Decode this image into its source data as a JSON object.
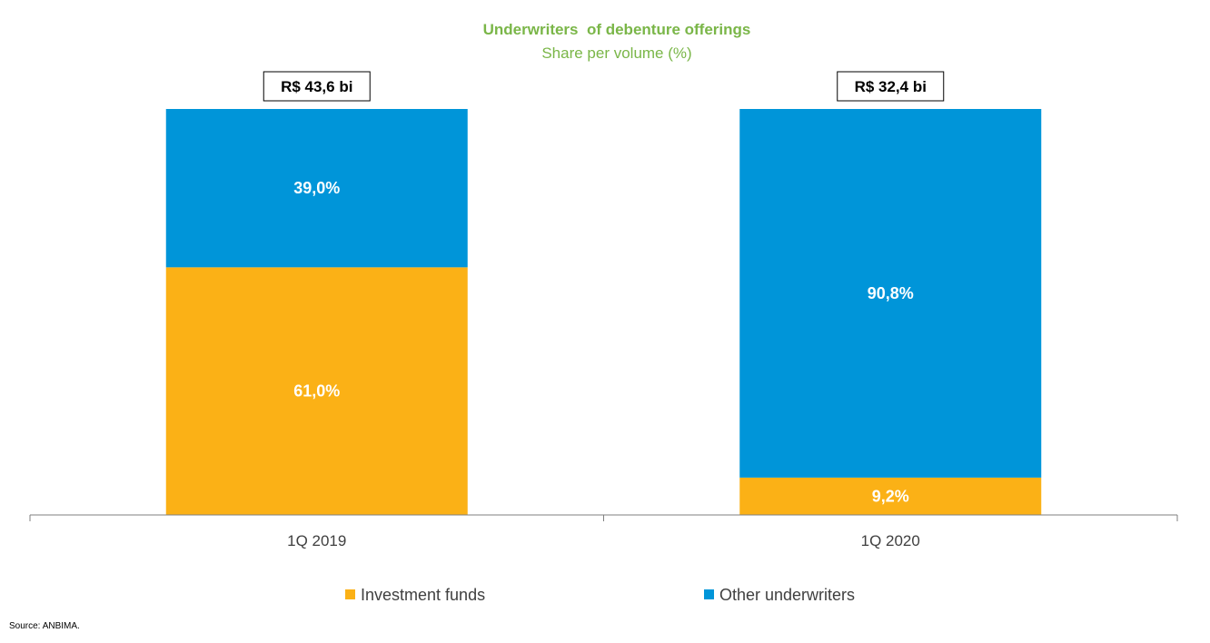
{
  "chart_data": {
    "type": "bar",
    "stacked": true,
    "title": "Underwriters  of debenture offerings",
    "subtitle": "Share per volume (%)",
    "categories": [
      "1Q 2019",
      "1Q 2020"
    ],
    "totals": [
      "R$ 43,6 bi",
      "R$ 32,4 bi"
    ],
    "series": [
      {
        "name": "Investment funds",
        "color": "#fbb116",
        "values": [
          61.0,
          9.2
        ],
        "labels": [
          "61,0%",
          "9,2%"
        ]
      },
      {
        "name": "Other underwriters",
        "color": "#0095d9",
        "values": [
          39.0,
          90.8
        ],
        "labels": [
          "39,0%",
          "90,8%"
        ]
      }
    ],
    "ylim": [
      0,
      100
    ],
    "grid": false,
    "legend_position": "bottom"
  },
  "source": "Source: ANBIMA."
}
